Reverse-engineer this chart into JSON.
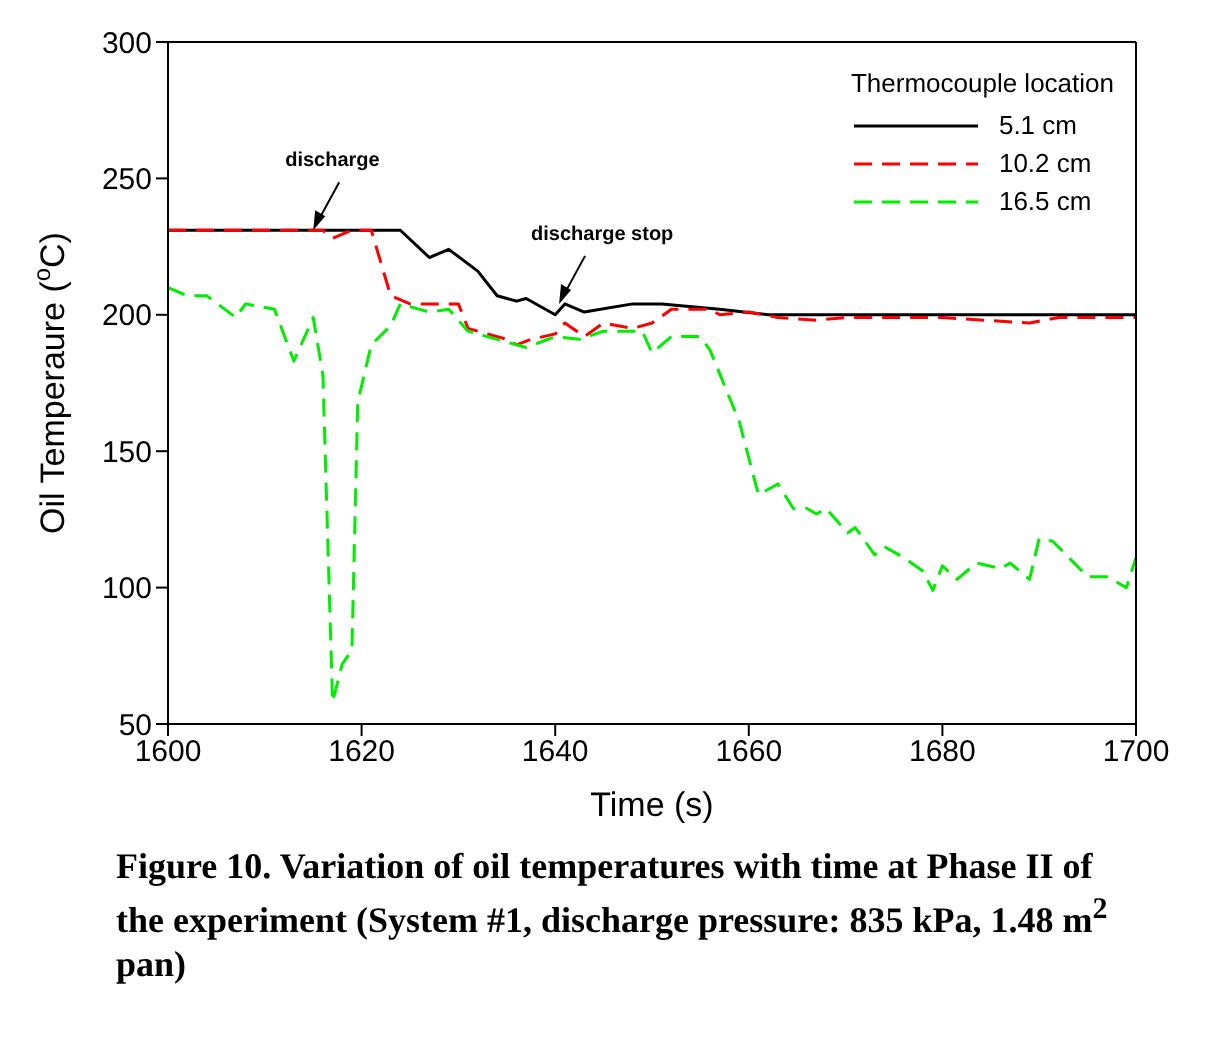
{
  "chart_data": {
    "type": "line",
    "xlabel": "Time (s)",
    "ylabel": "Oil Temperaure ($^{o}$C)",
    "legend_title": "Thermocouple location",
    "legend": "top right",
    "grid": false,
    "marker": "none",
    "xlim": [
      1600,
      1700
    ],
    "xticks": [
      1600,
      1620,
      1640,
      1660,
      1680,
      1700
    ],
    "ylim": [
      50,
      300
    ],
    "yticks": [
      50,
      100,
      150,
      200,
      250,
      300
    ],
    "series": [
      {
        "name": "5.1 cm",
        "color": "#000000",
        "line_style": "solid",
        "x": [
          1600,
          1610,
          1620,
          1624,
          1627,
          1629,
          1632,
          1634,
          1636,
          1637,
          1640,
          1641,
          1643,
          1648,
          1651,
          1657,
          1662,
          1670,
          1680,
          1690,
          1700
        ],
        "values": [
          231,
          231,
          231,
          231,
          221,
          224,
          216,
          207,
          205,
          206,
          200,
          204,
          201,
          204,
          204,
          202,
          200,
          200,
          200,
          200,
          200
        ]
      },
      {
        "name": "10.2 cm",
        "color": "#ff0000",
        "line_style": "dashed",
        "x": [
          1600,
          1610,
          1616,
          1617,
          1619,
          1621,
          1623,
          1625,
          1627,
          1630,
          1631,
          1633,
          1635,
          1636,
          1637.5,
          1640,
          1641,
          1643,
          1645,
          1648,
          1650,
          1652,
          1656,
          1657,
          1660,
          1663,
          1667,
          1670,
          1680,
          1689,
          1692,
          1700
        ],
        "values": [
          231,
          231,
          231,
          228,
          231,
          231,
          207,
          204,
          204,
          204,
          195,
          193,
          191,
          189,
          191,
          193,
          197,
          192,
          197,
          195,
          197,
          202,
          202,
          200,
          201,
          199,
          198,
          199,
          199,
          197,
          199,
          199
        ]
      },
      {
        "name": "16.5 cm",
        "color": "#00ee00",
        "line_style": "dashed",
        "x": [
          1600,
          1602,
          1604,
          1607,
          1608,
          1611,
          1613,
          1615,
          1616,
          1617,
          1618,
          1619,
          1619.6,
          1621,
          1623,
          1624,
          1626,
          1627,
          1629,
          1631,
          1633,
          1636,
          1637,
          1640,
          1642.5,
          1645,
          1649,
          1650,
          1652,
          1655,
          1656,
          1659,
          1661,
          1663,
          1664.6,
          1666,
          1667,
          1668,
          1670.2,
          1671,
          1673,
          1674,
          1676,
          1678,
          1679,
          1680,
          1681.5,
          1683.5,
          1686,
          1687,
          1689,
          1690,
          1691.4,
          1695,
          1697,
          1699,
          1700
        ],
        "values": [
          210,
          207,
          207,
          199,
          204,
          202,
          183,
          199,
          178,
          58,
          72,
          77,
          168,
          189,
          196,
          204,
          202,
          201,
          202,
          194,
          192,
          189,
          188,
          192,
          191,
          194,
          194,
          186,
          192,
          192,
          187,
          161,
          134,
          138,
          129,
          129,
          127,
          129,
          120,
          122,
          112,
          115,
          111,
          106,
          99,
          108,
          103,
          109,
          107,
          109,
          103,
          118,
          117,
          104,
          104,
          100,
          111
        ]
      }
    ],
    "annotations": [
      {
        "text": "discharge",
        "x": 1615,
        "y": 231
      },
      {
        "text": "discharge stop",
        "x": 1640.4,
        "y": 204
      },
      "Figure 10.  Variation of oil temperatures with time at Phase II of the experiment (System #1, discharge pressure: 835 kPa, 1.48 m$^{2}$ pan)"
    ]
  }
}
